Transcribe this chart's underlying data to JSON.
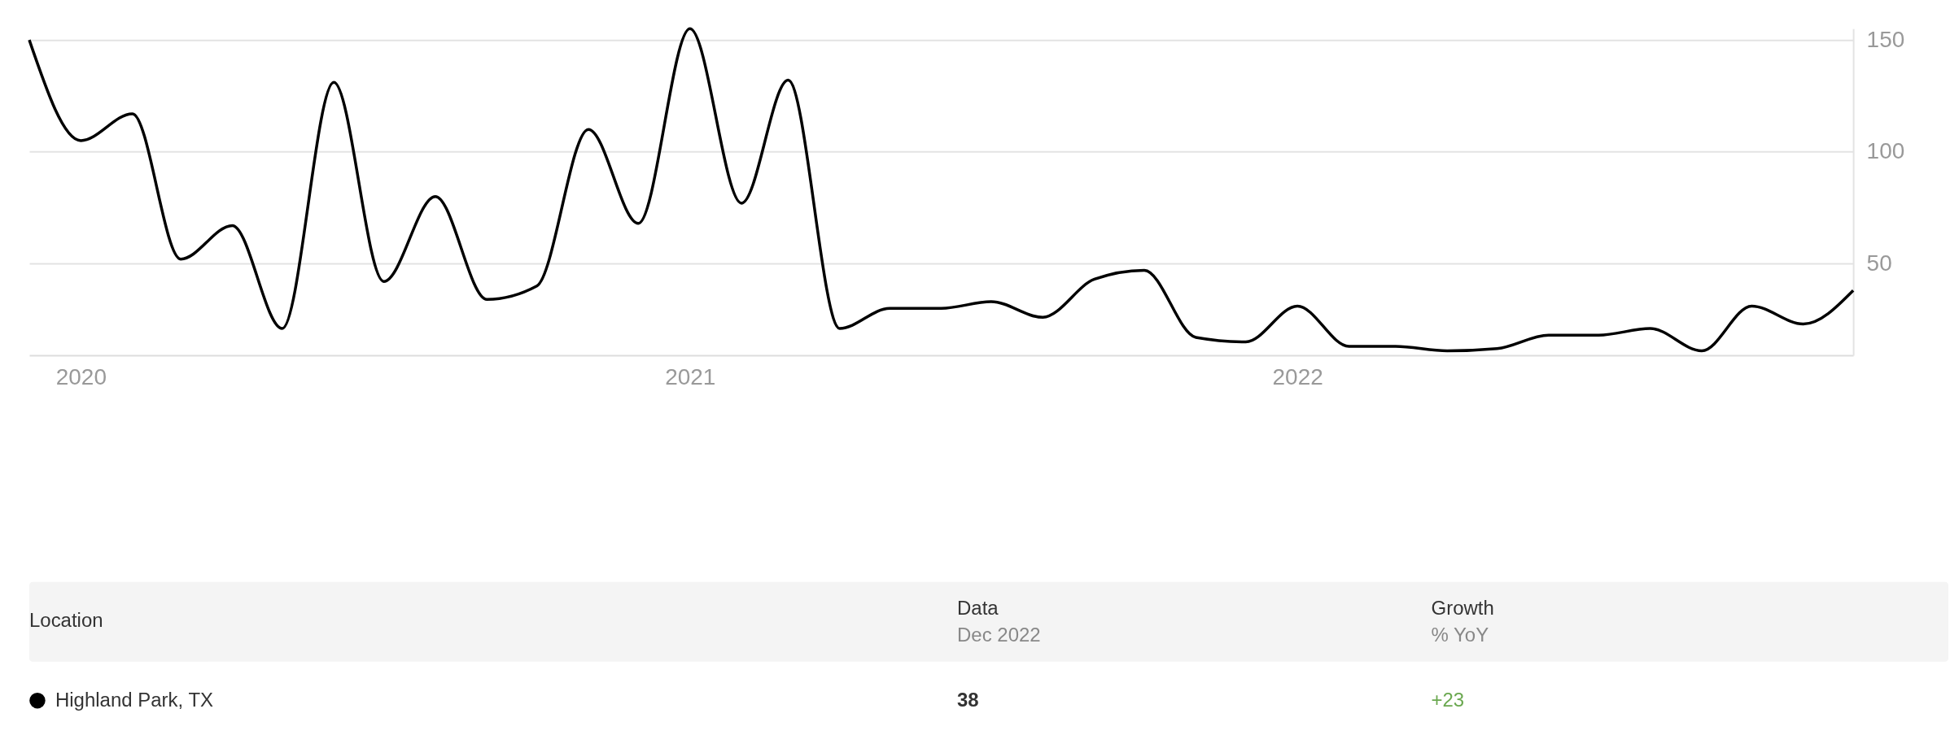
{
  "chart_data": {
    "type": "line",
    "x": [
      "2019-12",
      "2020-01",
      "2020-02",
      "2020-03",
      "2020-04",
      "2020-05",
      "2020-06",
      "2020-07",
      "2020-08",
      "2020-09",
      "2020-10",
      "2020-11",
      "2020-12",
      "2021-01",
      "2021-02",
      "2021-03",
      "2021-04",
      "2021-05",
      "2021-06",
      "2021-07",
      "2021-08",
      "2021-09",
      "2021-10",
      "2021-11",
      "2021-12",
      "2022-01",
      "2022-02",
      "2022-03",
      "2022-04",
      "2022-05",
      "2022-06",
      "2022-07",
      "2022-08",
      "2022-09",
      "2022-10",
      "2022-11",
      "2022-12"
    ],
    "series": [
      {
        "name": "Highland Park, TX",
        "color": "#000000",
        "values": [
          150,
          105,
          117,
          52,
          67,
          21,
          131,
          42,
          80,
          34,
          40,
          110,
          68,
          155,
          77,
          132,
          21,
          30,
          30,
          33,
          26,
          43,
          47,
          17,
          15,
          31,
          13,
          13,
          11,
          12,
          18,
          18,
          21,
          11,
          31,
          23,
          38
        ]
      }
    ],
    "xlim": [
      "2019-12",
      "2022-12"
    ],
    "xticks": [
      "2020",
      "2021",
      "2022"
    ],
    "ylim": [
      9,
      155
    ],
    "yticks": [
      50,
      100,
      150
    ],
    "grid": "y",
    "legend": "bottom",
    "marker": "none",
    "line_style": "solid",
    "annotations": [
      "Location",
      "Data",
      "Dec 2022",
      "Growth",
      "% YoY",
      "38",
      "+23"
    ]
  }
}
